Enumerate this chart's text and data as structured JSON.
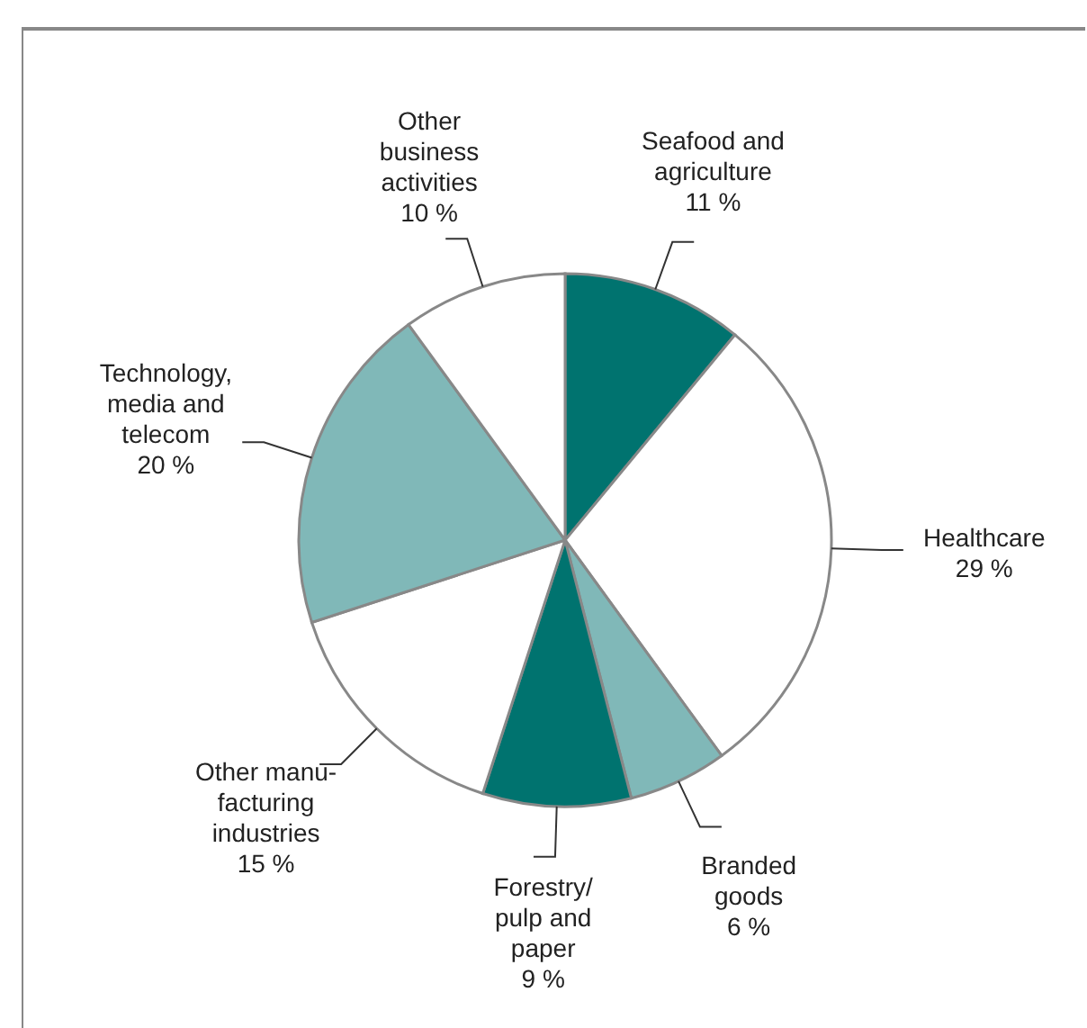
{
  "chart_data": {
    "type": "pie",
    "categories": [
      "Seafood and\nagriculture",
      "Healthcare",
      "Branded\ngoods",
      "Forestry/\npulp and\npaper",
      "Other manu-\nfacturing\nindustries",
      "Technology,\nmedia and\ntelecom",
      "Other\nbusiness\nactivities"
    ],
    "values": [
      11,
      29,
      6,
      9,
      15,
      20,
      10
    ],
    "value_labels": [
      "11 %",
      "29 %",
      "6 %",
      "9 %",
      "15 %",
      "20 %",
      "10 %"
    ],
    "colors": [
      "#00736f",
      "#ffffff",
      "#80b8b8",
      "#00736f",
      "#ffffff",
      "#80b8b8",
      "#ffffff"
    ],
    "legend": false
  }
}
